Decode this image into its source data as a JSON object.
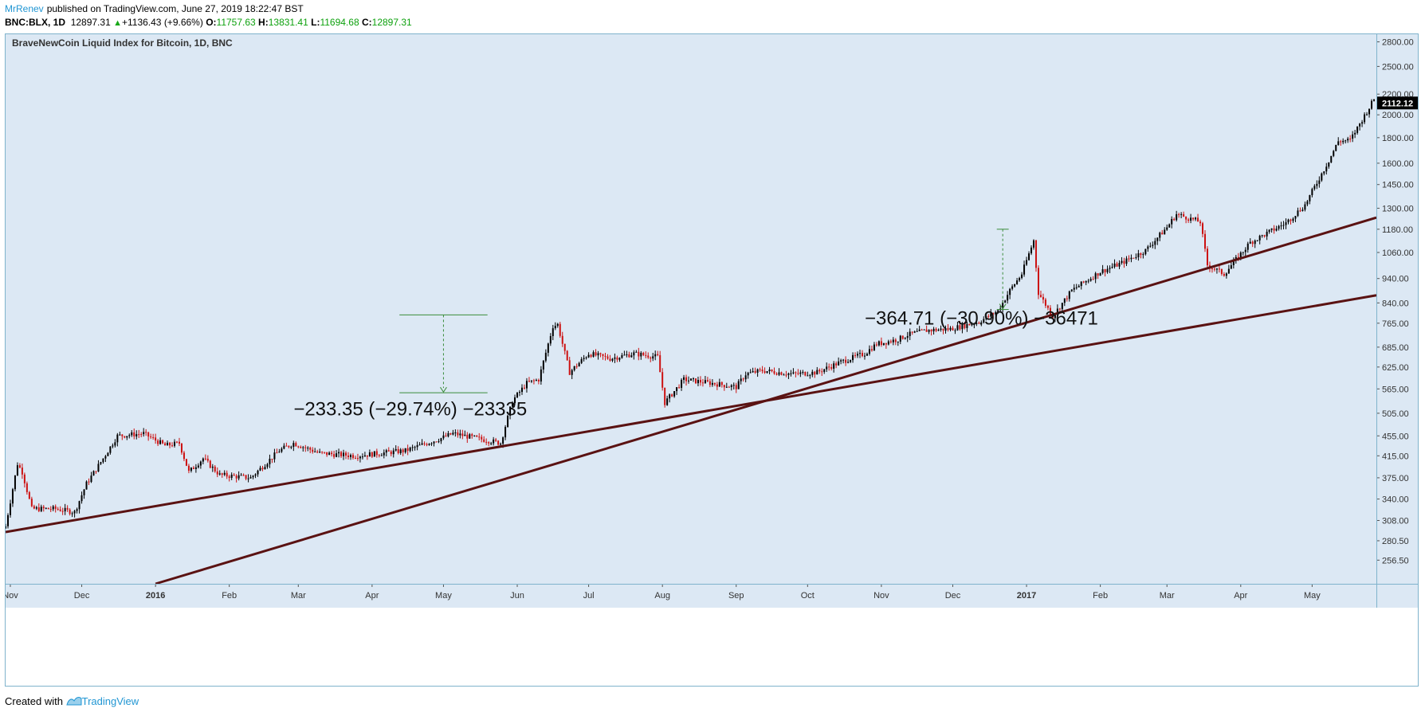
{
  "header": {
    "author": "MrRenev",
    "published_text": "published on TradingView.com, June 27, 2019 18:22:47 BST"
  },
  "quote": {
    "symbol": "BNC:BLX, 1D",
    "price": "12897.31",
    "change": "+1136.43 (+9.66%)",
    "o_label": "O:",
    "o_value": "11757.63",
    "h_label": "H:",
    "h_value": "13831.41",
    "l_label": "L:",
    "l_value": "11694.68",
    "c_label": "C:",
    "c_value": "12897.31"
  },
  "footer": {
    "created_with": "Created with",
    "brand": "TradingView"
  },
  "colors": {
    "background": "#dce8f4",
    "up_candle": "#000000",
    "down_candle": "#cc1111",
    "trendline": "#5a1212",
    "measure": "#3a8c3a",
    "accent": "#2196d3"
  },
  "chart_data": {
    "type": "candlestick",
    "title": "BraveNewCoin Liquid Index for Bitcoin, 1D, BNC",
    "y_scale": "log",
    "ylim": [
      230,
      2900
    ],
    "y_ticks": [
      256.5,
      280.5,
      308,
      340,
      375,
      415,
      455,
      505,
      565,
      625,
      685,
      765,
      840,
      940,
      1060,
      1180,
      1300,
      1450,
      1600,
      1800,
      2000,
      2200,
      2500,
      2800
    ],
    "y_tick_labels": [
      "256.50",
      "280.50",
      "308.00",
      "340.00",
      "375.00",
      "415.00",
      "455.00",
      "505.00",
      "565.00",
      "625.00",
      "685.00",
      "765.00",
      "840.00",
      "940.00",
      "1060.00",
      "1180.00",
      "1300.00",
      "1450.00",
      "1600.00",
      "1800.00",
      "2000.00",
      "2200.00",
      "2500.00",
      "2800.00"
    ],
    "x_range": [
      "2015-10-30",
      "2017-05-28"
    ],
    "x_ticks": [
      {
        "date": "2015-11-01",
        "label": "Nov",
        "bold": false
      },
      {
        "date": "2015-12-01",
        "label": "Dec",
        "bold": false
      },
      {
        "date": "2016-01-01",
        "label": "2016",
        "bold": true
      },
      {
        "date": "2016-02-01",
        "label": "Feb",
        "bold": false
      },
      {
        "date": "2016-03-01",
        "label": "Mar",
        "bold": false
      },
      {
        "date": "2016-04-01",
        "label": "Apr",
        "bold": false
      },
      {
        "date": "2016-05-01",
        "label": "May",
        "bold": false
      },
      {
        "date": "2016-06-01",
        "label": "Jun",
        "bold": false
      },
      {
        "date": "2016-07-01",
        "label": "Jul",
        "bold": false
      },
      {
        "date": "2016-08-01",
        "label": "Aug",
        "bold": false
      },
      {
        "date": "2016-09-01",
        "label": "Sep",
        "bold": false
      },
      {
        "date": "2016-10-01",
        "label": "Oct",
        "bold": false
      },
      {
        "date": "2016-11-01",
        "label": "Nov",
        "bold": false
      },
      {
        "date": "2016-12-01",
        "label": "Dec",
        "bold": false
      },
      {
        "date": "2017-01-01",
        "label": "2017",
        "bold": true
      },
      {
        "date": "2017-02-01",
        "label": "Feb",
        "bold": false
      },
      {
        "date": "2017-03-01",
        "label": "Mar",
        "bold": false
      },
      {
        "date": "2017-04-01",
        "label": "Apr",
        "bold": false
      },
      {
        "date": "2017-05-01",
        "label": "May",
        "bold": false
      }
    ],
    "price_path": [
      [
        "2015-10-30",
        300
      ],
      [
        "2015-11-04",
        400
      ],
      [
        "2015-11-06",
        385
      ],
      [
        "2015-11-10",
        325
      ],
      [
        "2015-11-20",
        325
      ],
      [
        "2015-11-28",
        320
      ],
      [
        "2015-12-03",
        365
      ],
      [
        "2015-12-10",
        410
      ],
      [
        "2015-12-16",
        455
      ],
      [
        "2015-12-27",
        460
      ],
      [
        "2016-01-05",
        435
      ],
      [
        "2016-01-11",
        440
      ],
      [
        "2016-01-15",
        385
      ],
      [
        "2016-01-21",
        410
      ],
      [
        "2016-01-28",
        380
      ],
      [
        "2016-02-10",
        375
      ],
      [
        "2016-02-22",
        425
      ],
      [
        "2016-02-28",
        440
      ],
      [
        "2016-03-10",
        420
      ],
      [
        "2016-03-25",
        415
      ],
      [
        "2016-04-15",
        425
      ],
      [
        "2016-04-30",
        450
      ],
      [
        "2016-05-05",
        460
      ],
      [
        "2016-05-20",
        445
      ],
      [
        "2016-05-25",
        440
      ],
      [
        "2016-05-30",
        535
      ],
      [
        "2016-06-05",
        580
      ],
      [
        "2016-06-10",
        590
      ],
      [
        "2016-06-16",
        755
      ],
      [
        "2016-06-18",
        760
      ],
      [
        "2016-06-23",
        610
      ],
      [
        "2016-07-01",
        665
      ],
      [
        "2016-07-10",
        650
      ],
      [
        "2016-07-20",
        665
      ],
      [
        "2016-07-30",
        655
      ],
      [
        "2016-08-02",
        530
      ],
      [
        "2016-08-10",
        590
      ],
      [
        "2016-08-22",
        580
      ],
      [
        "2016-09-01",
        570
      ],
      [
        "2016-09-05",
        605
      ],
      [
        "2016-09-12",
        615
      ],
      [
        "2016-09-25",
        605
      ],
      [
        "2016-10-05",
        610
      ],
      [
        "2016-10-15",
        640
      ],
      [
        "2016-10-25",
        665
      ],
      [
        "2016-10-30",
        695
      ],
      [
        "2016-11-08",
        710
      ],
      [
        "2016-11-12",
        725
      ],
      [
        "2016-11-20",
        740
      ],
      [
        "2016-11-30",
        745
      ],
      [
        "2016-12-12",
        770
      ],
      [
        "2016-12-20",
        810
      ],
      [
        "2016-12-25",
        890
      ],
      [
        "2016-12-30",
        960
      ],
      [
        "2017-01-04",
        1120
      ],
      [
        "2017-01-06",
        880
      ],
      [
        "2017-01-12",
        790
      ],
      [
        "2017-01-20",
        890
      ],
      [
        "2017-02-01",
        970
      ],
      [
        "2017-02-10",
        1010
      ],
      [
        "2017-02-20",
        1070
      ],
      [
        "2017-03-01",
        1190
      ],
      [
        "2017-03-05",
        1265
      ],
      [
        "2017-03-15",
        1220
      ],
      [
        "2017-03-18",
        1000
      ],
      [
        "2017-03-25",
        960
      ],
      [
        "2017-04-05",
        1110
      ],
      [
        "2017-04-20",
        1215
      ],
      [
        "2017-04-28",
        1320
      ],
      [
        "2017-05-08",
        1620
      ],
      [
        "2017-05-12",
        1770
      ],
      [
        "2017-05-17",
        1780
      ],
      [
        "2017-05-24",
        2030
      ],
      [
        "2017-05-27",
        2150
      ]
    ],
    "last_price_label": "2112.12",
    "trendlines": [
      {
        "name": "",
        "from": [
          "2015-10-30",
          292
        ],
        "to": [
          "2017-05-28",
          870
        ]
      },
      {
        "name": "",
        "from": [
          "2016-01-01",
          230
        ],
        "to": [
          "2017-05-28",
          1245
        ]
      }
    ],
    "measures": [
      {
        "top": 795,
        "bottom": 555,
        "date": "2016-05-01",
        "width_days": 37,
        "label_date": "2016-02-28",
        "label_value": 500,
        "text": "−233.35 (−29.74%) −23335"
      },
      {
        "top": 1180,
        "bottom": 815,
        "date": "2016-12-22",
        "width_days": 5,
        "label_date": "2016-10-25",
        "label_value": 760,
        "text": "−364.71 (−30.90%) −36471"
      }
    ]
  }
}
